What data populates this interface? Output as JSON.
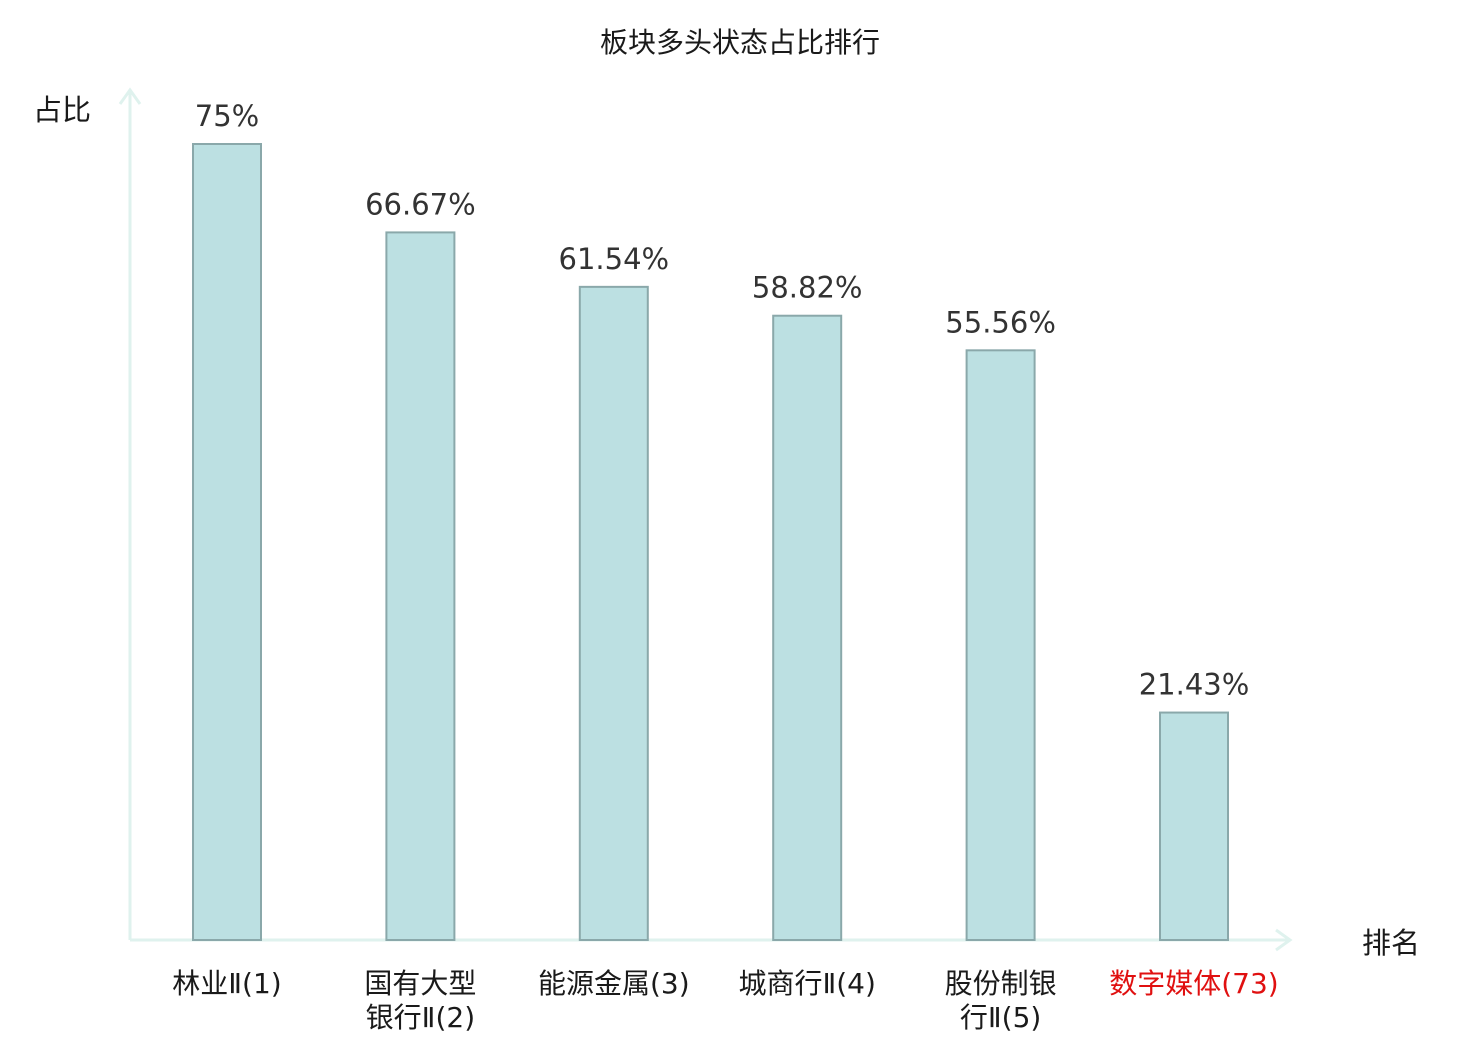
{
  "chart_data": {
    "type": "bar",
    "title": "板块多头状态占比排行",
    "ylabel": "占比",
    "xlabel": "排名",
    "ylim": [
      0,
      80
    ],
    "grid": false,
    "categories": [
      [
        "林业Ⅱ(1)"
      ],
      [
        "国有大型",
        "银行Ⅱ(2)"
      ],
      [
        "能源金属(3)"
      ],
      [
        "城商行Ⅱ(4)"
      ],
      [
        "股份制银",
        "行Ⅱ(5)"
      ],
      [
        "数字媒体(73)"
      ]
    ],
    "values": [
      75,
      66.67,
      61.54,
      58.82,
      55.56,
      21.43
    ],
    "value_labels": [
      "75%",
      "66.67%",
      "61.54%",
      "58.82%",
      "55.56%",
      "21.43%"
    ],
    "highlight_index": 5,
    "colors": {
      "bar_fill": "#bce0e2",
      "bar_stroke": "#8aa8aa",
      "axis": "#dff2ee",
      "text": "#1a1a1a",
      "value_text": "#333333",
      "highlight_text": "#e01010"
    }
  }
}
